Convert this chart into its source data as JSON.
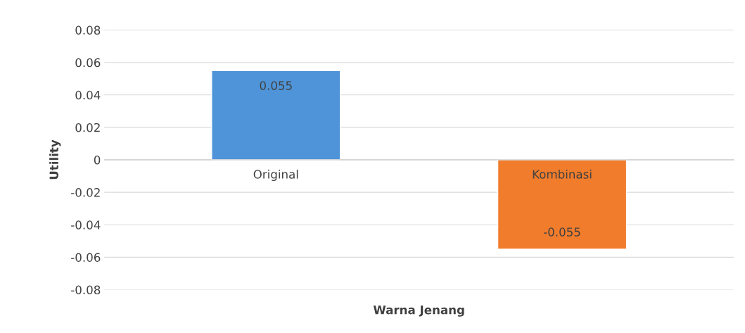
{
  "chart_data": {
    "type": "bar",
    "xlabel": "Warna Jenang",
    "ylabel": "Utility",
    "categories": [
      "Original",
      "Kombinasi"
    ],
    "values": [
      0.055,
      -0.055
    ],
    "colors": [
      "#4f94d8",
      "#f07c2c"
    ],
    "ylim": [
      -0.08,
      0.08
    ],
    "yticks": [
      {
        "value": -0.08,
        "label": "-0.08"
      },
      {
        "value": -0.06,
        "label": "-0.06"
      },
      {
        "value": -0.04,
        "label": "-0.04"
      },
      {
        "value": -0.02,
        "label": "-0.02"
      },
      0,
      {
        "value": 0.02,
        "label": "0.02"
      },
      {
        "value": 0.04,
        "label": "0.04"
      },
      {
        "value": 0.06,
        "label": "0.06"
      },
      {
        "value": 0.08,
        "label": "0.08"
      }
    ],
    "grid": "y",
    "data_labels": true
  }
}
